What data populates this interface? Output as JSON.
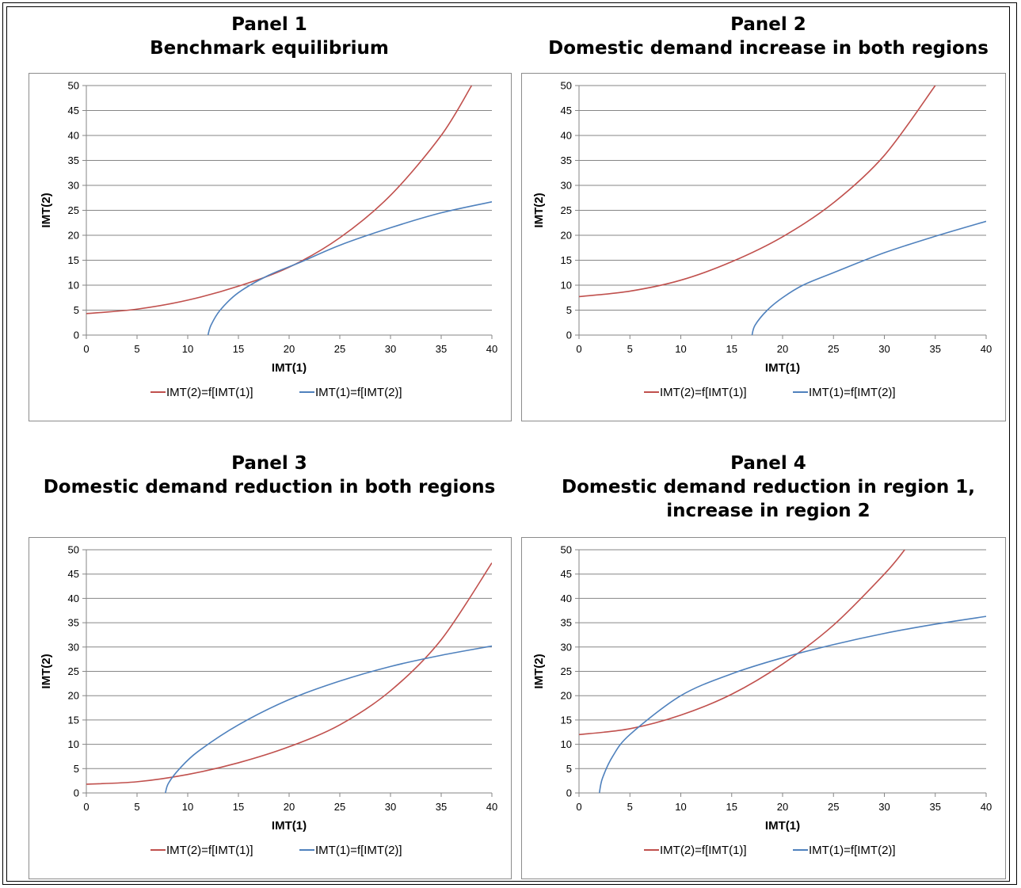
{
  "colors": {
    "red_curve": "#c0504d",
    "blue_curve": "#4f81bd",
    "grid": "#868686"
  },
  "panels": [
    {
      "title_line1": "Panel 1",
      "title_line2": "Benchmark equilibrium",
      "title_line3": ""
    },
    {
      "title_line1": "Panel 2",
      "title_line2": "Domestic demand increase in both regions",
      "title_line3": ""
    },
    {
      "title_line1": "Panel 3",
      "title_line2": "Domestic demand reduction in both regions",
      "title_line3": ""
    },
    {
      "title_line1": "Panel 4",
      "title_line2": "Domestic demand reduction in region 1,",
      "title_line3": "increase in region 2"
    }
  ],
  "chart_data": [
    {
      "type": "line",
      "xlabel": "IMT(1)",
      "ylabel": "IMT(2)",
      "xlim": [
        0,
        40
      ],
      "ylim": [
        0,
        50
      ],
      "xticks": [
        0,
        5,
        10,
        15,
        20,
        25,
        30,
        35,
        40
      ],
      "yticks": [
        0,
        5,
        10,
        15,
        20,
        25,
        30,
        35,
        40,
        45,
        50
      ],
      "grid": true,
      "legend": "bottom",
      "series": [
        {
          "name": "IMT(2)=f[IMT(1)]",
          "color": "#c0504d",
          "x": [
            0,
            5,
            10,
            15,
            20,
            25,
            30,
            35,
            38
          ],
          "y": [
            4.3,
            5.2,
            7.0,
            9.8,
            13.6,
            19.5,
            28.0,
            40.0,
            50.0
          ]
        },
        {
          "name": "IMT(1)=f[IMT(2)]",
          "color": "#4f81bd",
          "x": [
            12,
            12.3,
            13.2,
            15,
            18,
            21,
            25,
            30,
            35,
            40
          ],
          "y": [
            0,
            2,
            5,
            8.5,
            12,
            14.5,
            18,
            21.5,
            24.5,
            26.7
          ]
        }
      ]
    },
    {
      "type": "line",
      "xlabel": "IMT(1)",
      "ylabel": "IMT(2)",
      "xlim": [
        0,
        40
      ],
      "ylim": [
        0,
        50
      ],
      "xticks": [
        0,
        5,
        10,
        15,
        20,
        25,
        30,
        35,
        40
      ],
      "yticks": [
        0,
        5,
        10,
        15,
        20,
        25,
        30,
        35,
        40,
        45,
        50
      ],
      "grid": true,
      "legend": "bottom",
      "series": [
        {
          "name": "IMT(2)=f[IMT(1)]",
          "color": "#c0504d",
          "x": [
            0,
            5,
            10,
            15,
            20,
            25,
            30,
            35
          ],
          "y": [
            7.7,
            8.8,
            11.0,
            14.7,
            19.7,
            26.5,
            36.0,
            50.0
          ]
        },
        {
          "name": "IMT(1)=f[IMT(2)]",
          "color": "#4f81bd",
          "x": [
            17,
            17.3,
            18.5,
            20,
            22,
            25,
            30,
            35,
            40
          ],
          "y": [
            0,
            2,
            5,
            7.5,
            10,
            12.5,
            16.5,
            19.8,
            22.8
          ]
        }
      ]
    },
    {
      "type": "line",
      "xlabel": "IMT(1)",
      "ylabel": "IMT(2)",
      "xlim": [
        0,
        40
      ],
      "ylim": [
        0,
        50
      ],
      "xticks": [
        0,
        5,
        10,
        15,
        20,
        25,
        30,
        35,
        40
      ],
      "yticks": [
        0,
        5,
        10,
        15,
        20,
        25,
        30,
        35,
        40,
        45,
        50
      ],
      "grid": true,
      "legend": "bottom",
      "series": [
        {
          "name": "IMT(2)=f[IMT(1)]",
          "color": "#c0504d",
          "x": [
            0,
            5,
            10,
            15,
            20,
            25,
            30,
            35,
            40
          ],
          "y": [
            1.8,
            2.3,
            3.8,
            6.2,
            9.5,
            14.0,
            21.0,
            31.5,
            47.3
          ]
        },
        {
          "name": "IMT(1)=f[IMT(2)]",
          "color": "#4f81bd",
          "x": [
            7.8,
            8.1,
            9.2,
            11,
            15,
            20,
            25,
            30,
            35,
            40
          ],
          "y": [
            0,
            2,
            5,
            8.5,
            14,
            19.2,
            23,
            26,
            28.3,
            30.2
          ]
        }
      ]
    },
    {
      "type": "line",
      "xlabel": "IMT(1)",
      "ylabel": "IMT(2)",
      "xlim": [
        0,
        40
      ],
      "ylim": [
        0,
        50
      ],
      "xticks": [
        0,
        5,
        10,
        15,
        20,
        25,
        30,
        35,
        40
      ],
      "yticks": [
        0,
        5,
        10,
        15,
        20,
        25,
        30,
        35,
        40,
        45,
        50
      ],
      "grid": true,
      "legend": "bottom",
      "series": [
        {
          "name": "IMT(2)=f[IMT(1)]",
          "color": "#c0504d",
          "x": [
            0,
            5,
            10,
            15,
            20,
            25,
            30,
            32
          ],
          "y": [
            12.0,
            13.2,
            16.0,
            20.3,
            26.5,
            34.5,
            45.0,
            50.0
          ]
        },
        {
          "name": "IMT(1)=f[IMT(2)]",
          "color": "#4f81bd",
          "x": [
            2,
            2.3,
            3.3,
            5,
            10,
            15,
            20,
            25,
            30,
            35,
            40
          ],
          "y": [
            0,
            3,
            7.5,
            12,
            20,
            24.5,
            27.8,
            30.5,
            32.8,
            34.7,
            36.3
          ]
        }
      ]
    }
  ]
}
